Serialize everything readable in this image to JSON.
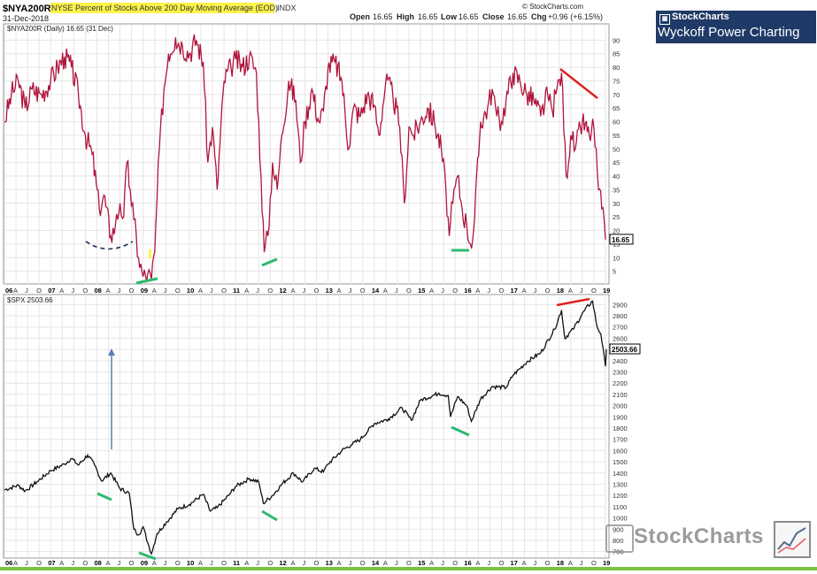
{
  "header": {
    "symbol": "$NYA200R",
    "title": "NYSE Percent of Stocks Above 200 Day Moving Average (EOD)",
    "exchange": "INDX",
    "date": "31-Dec-2018",
    "source": "© StockCharts.com",
    "open_label": "Open",
    "open": "16.65",
    "high_label": "High",
    "high": "16.65",
    "low_label": "Low",
    "low": "16.65",
    "close_label": "Close",
    "close": "16.65",
    "chg_label": "Chg",
    "chg": "+0.96 (+6.15%)"
  },
  "brand": {
    "top": "StockCharts",
    "main": "Wyckoff Power Charting"
  },
  "watermark": {
    "text": "StockCharts"
  },
  "colors": {
    "upper_line": "#b0143c",
    "lower_line": "#111111",
    "green_mark": "#2eb872",
    "red_mark": "#e02020",
    "dash_mark": "#1a2a55",
    "arrow": "#5a7fb3",
    "highlight": "#fff34a"
  },
  "chart_data": [
    {
      "type": "line",
      "legend": "$NYA200R (Daily) 16.65 (31 Dec)",
      "last_value": "16.65",
      "ylim": [
        0,
        95
      ],
      "y_ticks": [
        5,
        10,
        15,
        20,
        25,
        30,
        35,
        40,
        45,
        50,
        55,
        60,
        65,
        70,
        75,
        80,
        85,
        90
      ],
      "x_range": [
        2006.0,
        2019.0
      ],
      "x_labels": [
        "06",
        "A",
        "J",
        "O",
        "07",
        "A",
        "J",
        "O",
        "08",
        "A",
        "J",
        "O",
        "09",
        "A",
        "J",
        "O",
        "10",
        "A",
        "J",
        "O",
        "11",
        "A",
        "J",
        "O",
        "12",
        "A",
        "J",
        "O",
        "13",
        "A",
        "J",
        "O",
        "14",
        "A",
        "J",
        "O",
        "15",
        "A",
        "J",
        "O",
        "16",
        "A",
        "J",
        "O",
        "17",
        "A",
        "J",
        "O",
        "18",
        "A",
        "J",
        "O",
        "19"
      ],
      "points": [
        [
          2006.0,
          60
        ],
        [
          2006.15,
          70
        ],
        [
          2006.3,
          75
        ],
        [
          2006.45,
          65
        ],
        [
          2006.6,
          72
        ],
        [
          2006.8,
          70
        ],
        [
          2007.0,
          75
        ],
        [
          2007.15,
          80
        ],
        [
          2007.3,
          84
        ],
        [
          2007.45,
          80
        ],
        [
          2007.6,
          70
        ],
        [
          2007.75,
          55
        ],
        [
          2007.9,
          48
        ],
        [
          2008.05,
          28
        ],
        [
          2008.15,
          33
        ],
        [
          2008.3,
          18
        ],
        [
          2008.4,
          22
        ],
        [
          2008.5,
          30
        ],
        [
          2008.58,
          25
        ],
        [
          2008.65,
          45
        ],
        [
          2008.72,
          35
        ],
        [
          2008.8,
          24
        ],
        [
          2008.9,
          10
        ],
        [
          2009.0,
          3
        ],
        [
          2009.1,
          4
        ],
        [
          2009.18,
          2
        ],
        [
          2009.25,
          12
        ],
        [
          2009.35,
          50
        ],
        [
          2009.45,
          72
        ],
        [
          2009.55,
          85
        ],
        [
          2009.7,
          91
        ],
        [
          2009.85,
          88
        ],
        [
          2010.0,
          85
        ],
        [
          2010.15,
          90
        ],
        [
          2010.3,
          82
        ],
        [
          2010.4,
          45
        ],
        [
          2010.5,
          58
        ],
        [
          2010.6,
          35
        ],
        [
          2010.75,
          75
        ],
        [
          2010.9,
          80
        ],
        [
          2011.0,
          83
        ],
        [
          2011.15,
          80
        ],
        [
          2011.3,
          84
        ],
        [
          2011.45,
          78
        ],
        [
          2011.55,
          40
        ],
        [
          2011.62,
          12
        ],
        [
          2011.7,
          18
        ],
        [
          2011.8,
          45
        ],
        [
          2011.9,
          35
        ],
        [
          2012.0,
          55
        ],
        [
          2012.15,
          75
        ],
        [
          2012.3,
          68
        ],
        [
          2012.4,
          45
        ],
        [
          2012.5,
          60
        ],
        [
          2012.65,
          72
        ],
        [
          2012.8,
          60
        ],
        [
          2012.9,
          64
        ],
        [
          2013.0,
          80
        ],
        [
          2013.15,
          82
        ],
        [
          2013.3,
          75
        ],
        [
          2013.45,
          50
        ],
        [
          2013.55,
          65
        ],
        [
          2013.7,
          62
        ],
        [
          2013.85,
          70
        ],
        [
          2014.0,
          66
        ],
        [
          2014.1,
          55
        ],
        [
          2014.25,
          75
        ],
        [
          2014.4,
          70
        ],
        [
          2014.55,
          58
        ],
        [
          2014.65,
          30
        ],
        [
          2014.75,
          58
        ],
        [
          2014.85,
          55
        ],
        [
          2015.0,
          60
        ],
        [
          2015.15,
          65
        ],
        [
          2015.3,
          60
        ],
        [
          2015.45,
          50
        ],
        [
          2015.55,
          35
        ],
        [
          2015.62,
          18
        ],
        [
          2015.7,
          30
        ],
        [
          2015.8,
          40
        ],
        [
          2015.9,
          28
        ],
        [
          2016.0,
          22
        ],
        [
          2016.08,
          15
        ],
        [
          2016.15,
          20
        ],
        [
          2016.3,
          60
        ],
        [
          2016.45,
          65
        ],
        [
          2016.55,
          72
        ],
        [
          2016.65,
          62
        ],
        [
          2016.75,
          60
        ],
        [
          2016.85,
          68
        ],
        [
          2017.0,
          78
        ],
        [
          2017.15,
          75
        ],
        [
          2017.3,
          70
        ],
        [
          2017.45,
          68
        ],
        [
          2017.6,
          62
        ],
        [
          2017.75,
          70
        ],
        [
          2017.85,
          64
        ],
        [
          2017.95,
          72
        ],
        [
          2018.05,
          78
        ],
        [
          2018.15,
          40
        ],
        [
          2018.25,
          55
        ],
        [
          2018.35,
          50
        ],
        [
          2018.5,
          60
        ],
        [
          2018.65,
          55
        ],
        [
          2018.75,
          58
        ],
        [
          2018.85,
          35
        ],
        [
          2018.92,
          28
        ],
        [
          2019.0,
          16.65
        ]
      ]
    },
    {
      "type": "line",
      "legend": "$SPX 2503.66",
      "last_value": "2503.66",
      "ylim": [
        650,
        2950
      ],
      "y_ticks": [
        700,
        800,
        900,
        1000,
        1100,
        1200,
        1300,
        1400,
        1500,
        1600,
        1700,
        1800,
        1900,
        2000,
        2100,
        2200,
        2300,
        2400,
        2500,
        2600,
        2700,
        2800,
        2900
      ],
      "x_range": [
        2006.0,
        2019.0
      ],
      "x_labels": [
        "06",
        "A",
        "J",
        "O",
        "07",
        "A",
        "J",
        "O",
        "08",
        "A",
        "J",
        "O",
        "09",
        "A",
        "J",
        "O",
        "10",
        "A",
        "J",
        "O",
        "11",
        "A",
        "J",
        "O",
        "12",
        "A",
        "J",
        "O",
        "13",
        "A",
        "J",
        "O",
        "14",
        "A",
        "J",
        "O",
        "15",
        "A",
        "J",
        "O",
        "16",
        "A",
        "J",
        "O",
        "17",
        "A",
        "J",
        "O",
        "18",
        "A",
        "J",
        "O",
        "19"
      ],
      "points": [
        [
          2006.0,
          1250
        ],
        [
          2006.3,
          1290
        ],
        [
          2006.45,
          1240
        ],
        [
          2006.7,
          1320
        ],
        [
          2007.0,
          1420
        ],
        [
          2007.3,
          1480
        ],
        [
          2007.45,
          1530
        ],
        [
          2007.6,
          1470
        ],
        [
          2007.8,
          1560
        ],
        [
          2007.95,
          1470
        ],
        [
          2008.1,
          1330
        ],
        [
          2008.3,
          1400
        ],
        [
          2008.5,
          1260
        ],
        [
          2008.7,
          1220
        ],
        [
          2008.8,
          900
        ],
        [
          2008.9,
          850
        ],
        [
          2009.0,
          920
        ],
        [
          2009.1,
          780
        ],
        [
          2009.18,
          680
        ],
        [
          2009.3,
          860
        ],
        [
          2009.5,
          960
        ],
        [
          2009.75,
          1080
        ],
        [
          2010.0,
          1120
        ],
        [
          2010.3,
          1210
        ],
        [
          2010.45,
          1060
        ],
        [
          2010.6,
          1090
        ],
        [
          2010.85,
          1200
        ],
        [
          2011.0,
          1280
        ],
        [
          2011.3,
          1350
        ],
        [
          2011.5,
          1320
        ],
        [
          2011.6,
          1130
        ],
        [
          2011.8,
          1200
        ],
        [
          2012.0,
          1300
        ],
        [
          2012.25,
          1400
        ],
        [
          2012.45,
          1320
        ],
        [
          2012.7,
          1440
        ],
        [
          2012.9,
          1410
        ],
        [
          2013.0,
          1480
        ],
        [
          2013.3,
          1600
        ],
        [
          2013.5,
          1650
        ],
        [
          2013.7,
          1700
        ],
        [
          2014.0,
          1840
        ],
        [
          2014.3,
          1880
        ],
        [
          2014.6,
          1980
        ],
        [
          2014.8,
          1870
        ],
        [
          2015.0,
          2050
        ],
        [
          2015.4,
          2110
        ],
        [
          2015.6,
          2090
        ],
        [
          2015.65,
          1900
        ],
        [
          2015.8,
          2080
        ],
        [
          2016.0,
          2000
        ],
        [
          2016.1,
          1860
        ],
        [
          2016.3,
          2060
        ],
        [
          2016.55,
          2170
        ],
        [
          2016.85,
          2160
        ],
        [
          2017.0,
          2270
        ],
        [
          2017.3,
          2390
        ],
        [
          2017.6,
          2470
        ],
        [
          2017.9,
          2680
        ],
        [
          2018.05,
          2850
        ],
        [
          2018.12,
          2600
        ],
        [
          2018.3,
          2680
        ],
        [
          2018.55,
          2850
        ],
        [
          2018.72,
          2930
        ],
        [
          2018.82,
          2700
        ],
        [
          2018.9,
          2640
        ],
        [
          2019.0,
          2350
        ],
        [
          2019.02,
          2503.66
        ]
      ]
    }
  ]
}
